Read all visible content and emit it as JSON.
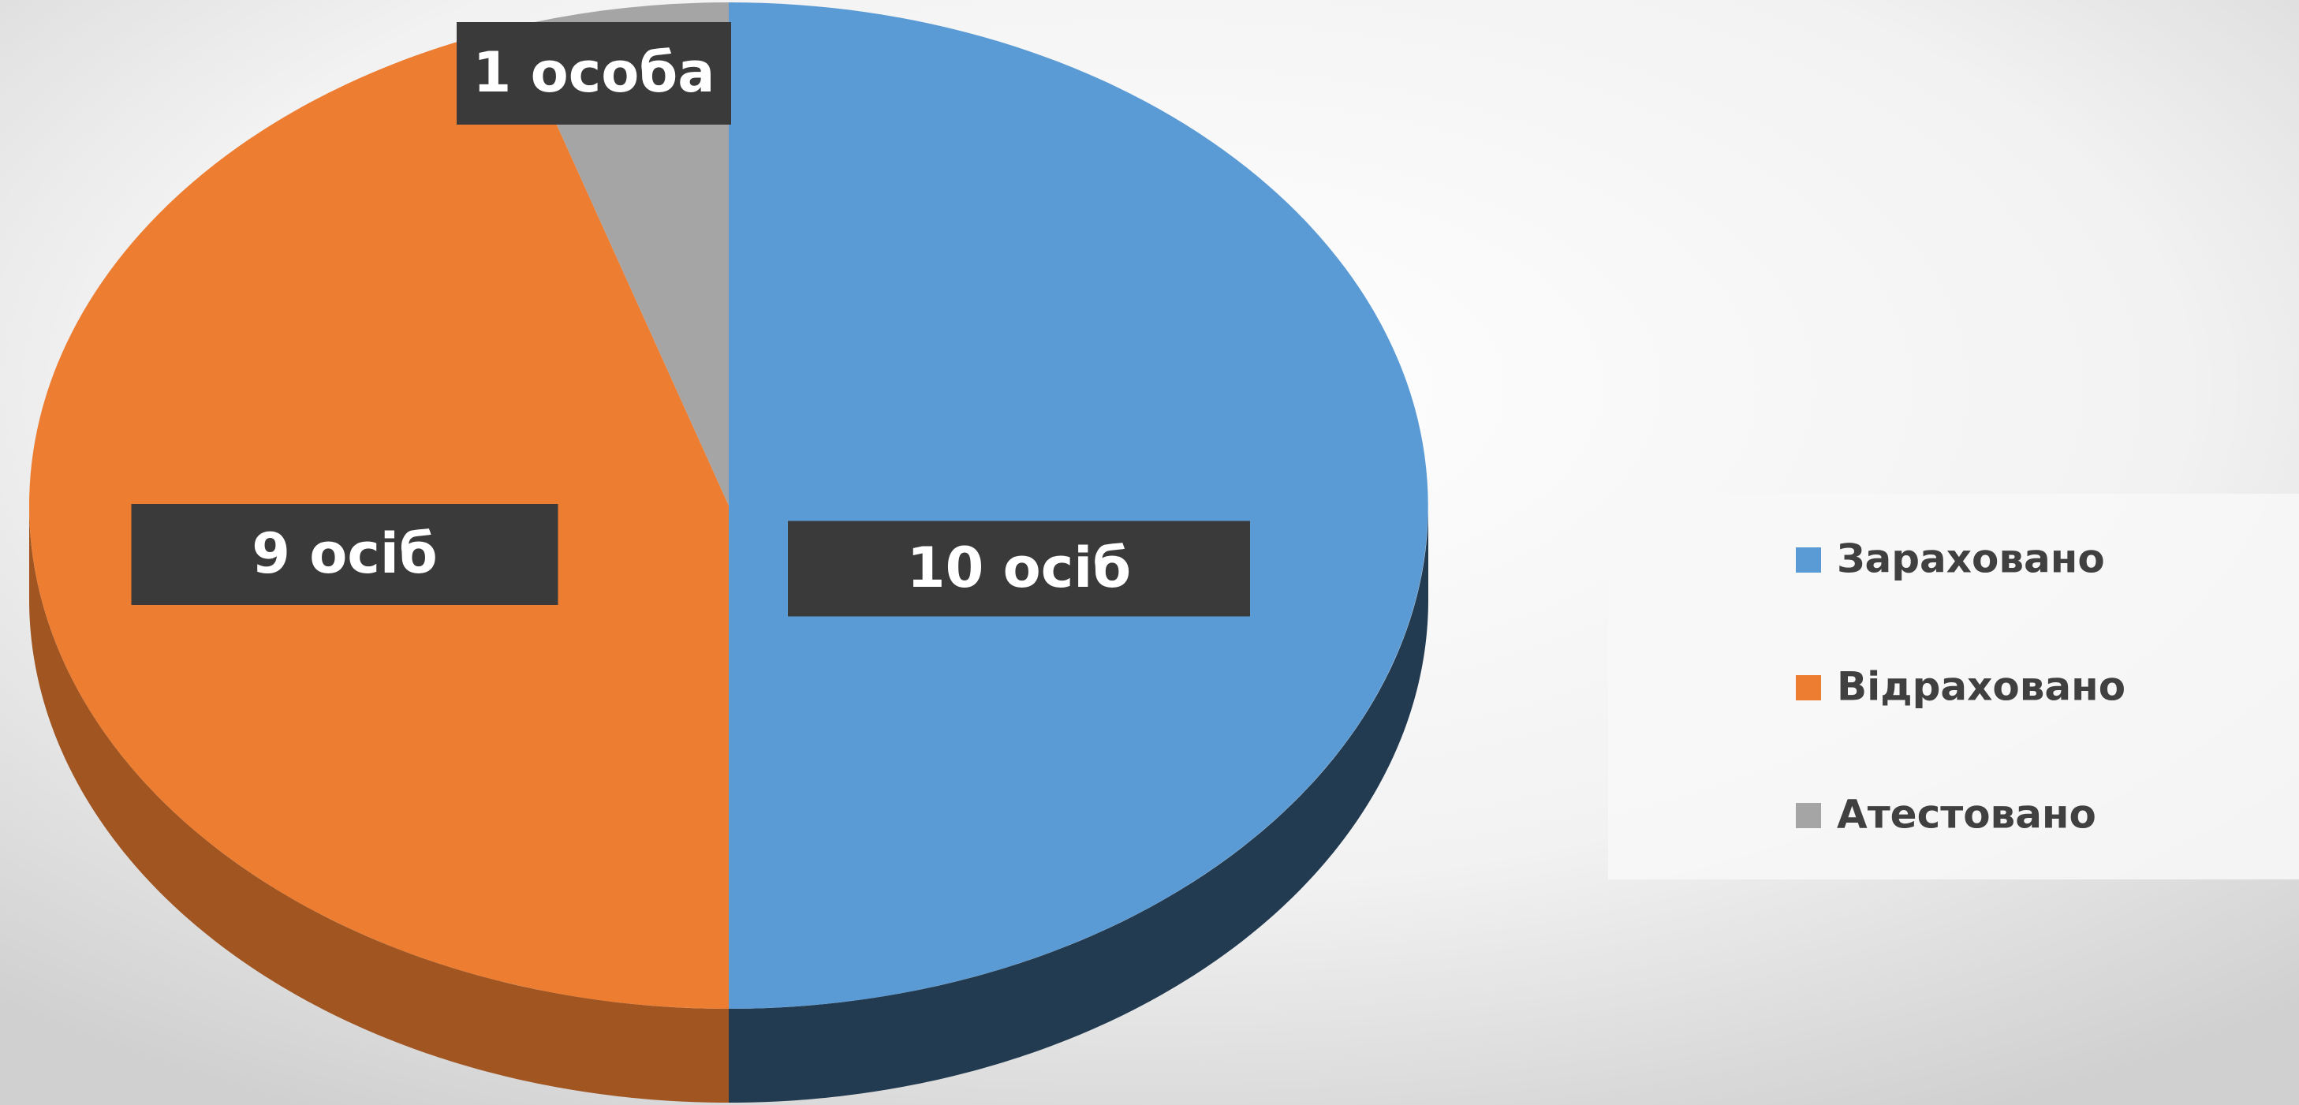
{
  "chart_data": {
    "type": "pie",
    "categories": [
      "Зараховано",
      "Відраховано",
      "Атестовано"
    ],
    "values": [
      10,
      9,
      1
    ],
    "value_labels": [
      "10 осіб",
      "9 осіб",
      "1 особа"
    ],
    "colors": [
      "#5b9bd5",
      "#ed7d31",
      "#a5a5a5"
    ],
    "legend": "right"
  }
}
